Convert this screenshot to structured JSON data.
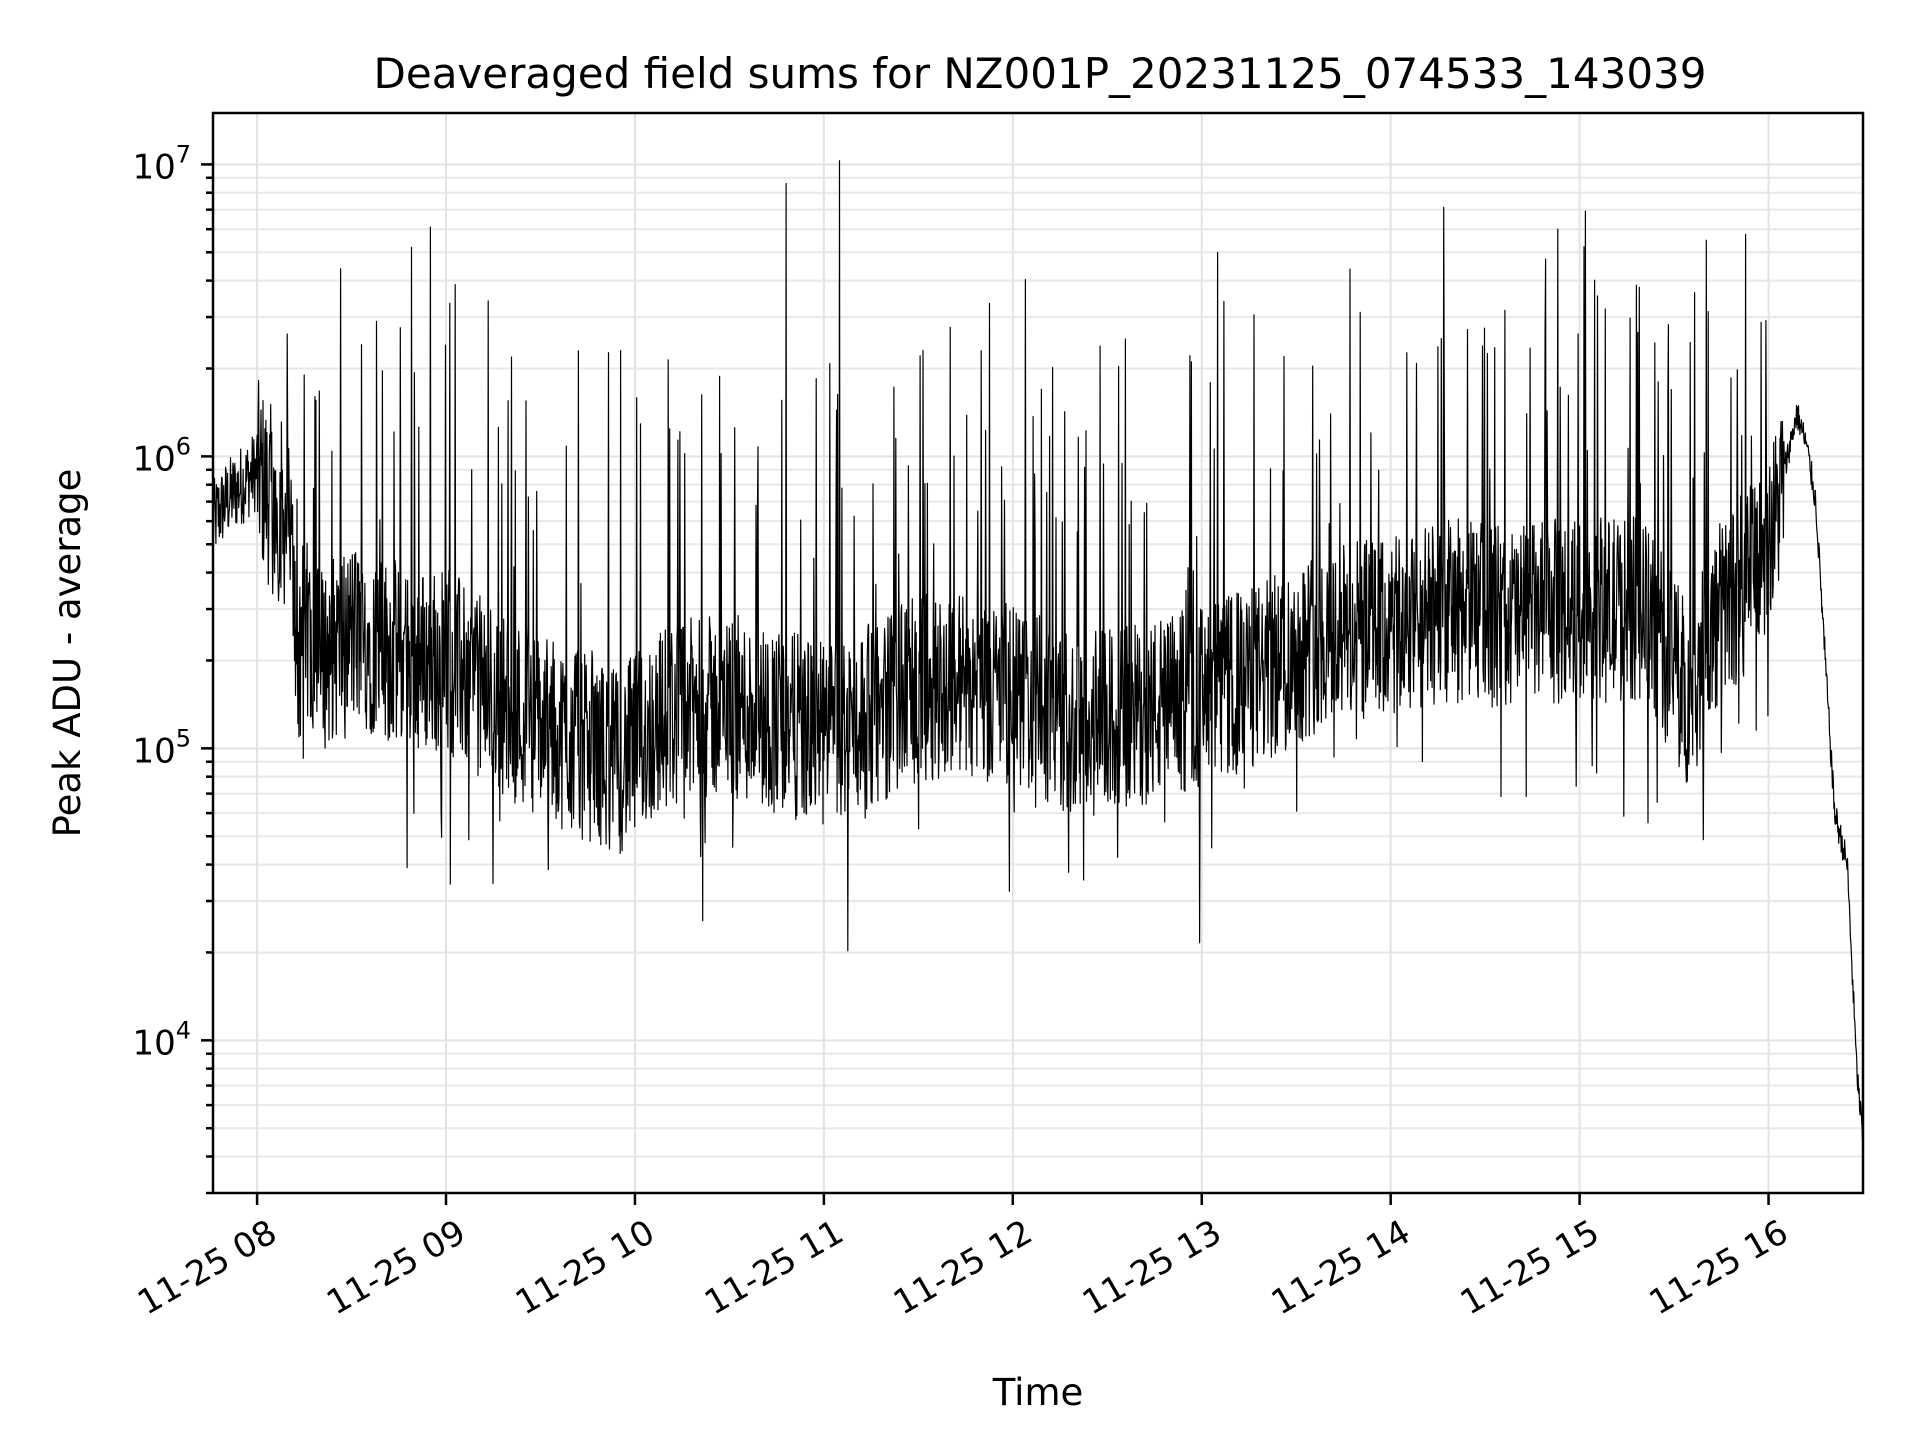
{
  "chart_data": {
    "type": "line",
    "title": "Deaveraged field sums for NZ001P_20231125_074533_143039",
    "xlabel": "Time",
    "ylabel": "Peak ADU - average",
    "y_scale": "log",
    "grid": true,
    "grid_minor": true,
    "legend": "none",
    "xlim": [
      "2023-11-25 07:46",
      "2023-11-25 16:30"
    ],
    "ylim": [
      3000,
      15000000
    ],
    "x_ticks": [
      "11-25 08",
      "11-25 09",
      "11-25 10",
      "11-25 11",
      "11-25 12",
      "11-25 13",
      "11-25 14",
      "11-25 15",
      "11-25 16"
    ],
    "x_tick_times": [
      "2023-11-25 08:00",
      "2023-11-25 09:00",
      "2023-11-25 10:00",
      "2023-11-25 11:00",
      "2023-11-25 12:00",
      "2023-11-25 13:00",
      "2023-11-25 14:00",
      "2023-11-25 15:00",
      "2023-11-25 16:00"
    ],
    "y_ticks": [
      {
        "base": "10",
        "exp": "4",
        "value": 10000
      },
      {
        "base": "10",
        "exp": "5",
        "value": 100000
      },
      {
        "base": "10",
        "exp": "6",
        "value": 1000000
      },
      {
        "base": "10",
        "exp": "7",
        "value": 10000000
      }
    ],
    "line_color": "#000000",
    "series": [
      {
        "x": [
          "2023-11-25 07:46",
          "2023-11-25 07:50",
          "2023-11-25 07:55",
          "2023-11-25 08:00",
          "2023-11-25 08:05",
          "2023-11-25 08:10",
          "2023-11-25 08:14",
          "2023-11-25 08:16",
          "2023-11-25 08:20",
          "2023-11-25 08:30",
          "2023-11-25 08:40",
          "2023-11-25 08:50",
          "2023-11-25 09:00",
          "2023-11-25 09:15",
          "2023-11-25 09:30",
          "2023-11-25 09:45",
          "2023-11-25 09:55",
          "2023-11-25 10:10",
          "2023-11-25 10:30",
          "2023-11-25 10:50",
          "2023-11-25 11:00",
          "2023-11-25 11:15",
          "2023-11-25 11:30",
          "2023-11-25 11:45",
          "2023-11-25 12:00",
          "2023-11-25 12:20",
          "2023-11-25 12:40",
          "2023-11-25 13:00",
          "2023-11-25 13:20",
          "2023-11-25 13:40",
          "2023-11-25 14:00",
          "2023-11-25 14:20",
          "2023-11-25 14:40",
          "2023-11-25 15:00",
          "2023-11-25 15:20",
          "2023-11-25 15:35",
          "2023-11-25 15:45",
          "2023-11-25 15:55",
          "2023-11-25 16:02",
          "2023-11-25 16:06",
          "2023-11-25 16:09",
          "2023-11-25 16:12",
          "2023-11-25 16:15",
          "2023-11-25 16:18",
          "2023-11-25 16:21",
          "2023-11-25 16:25",
          "2023-11-25 16:28",
          "2023-11-25 16:30"
        ],
        "y": [
          600000,
          700000,
          800000,
          900000,
          700000,
          600000,
          150000,
          250000,
          200000,
          250000,
          220000,
          200000,
          200000,
          150000,
          120000,
          100000,
          90000,
          130000,
          140000,
          120000,
          110000,
          130000,
          160000,
          170000,
          150000,
          120000,
          130000,
          150000,
          180000,
          250000,
          250000,
          300000,
          280000,
          300000,
          300000,
          150000,
          300000,
          400000,
          600000,
          1000000,
          1400000,
          1100000,
          700000,
          200000,
          60000,
          40000,
          8000,
          4500
        ]
      }
    ],
    "spikes": [
      {
        "x": "2023-11-25 08:15",
        "y": 1900000
      },
      {
        "x": "2023-11-25 08:38",
        "y": 2900000
      },
      {
        "x": "2023-11-25 08:49",
        "y": 5200000
      },
      {
        "x": "2023-11-25 08:55",
        "y": 6100000
      },
      {
        "x": "2023-11-25 09:42",
        "y": 2300000
      },
      {
        "x": "2023-11-25 10:48",
        "y": 8600000
      },
      {
        "x": "2023-11-25 11:05",
        "y": 10300000
      },
      {
        "x": "2023-11-25 11:50",
        "y": 2300000
      },
      {
        "x": "2023-11-25 13:05",
        "y": 5000000
      },
      {
        "x": "2023-11-25 15:25",
        "y": 1800000
      }
    ]
  }
}
